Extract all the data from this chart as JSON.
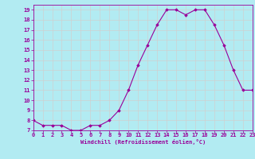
{
  "x": [
    0,
    1,
    2,
    3,
    4,
    5,
    6,
    7,
    8,
    9,
    10,
    11,
    12,
    13,
    14,
    15,
    16,
    17,
    18,
    19,
    20,
    21,
    22,
    23
  ],
  "y": [
    8.0,
    7.5,
    7.5,
    7.5,
    7.0,
    7.0,
    7.5,
    7.5,
    8.0,
    9.0,
    11.0,
    13.5,
    15.5,
    17.5,
    19.0,
    19.0,
    18.5,
    19.0,
    19.0,
    17.5,
    15.5,
    13.0,
    11.0,
    11.0
  ],
  "line_color": "#990099",
  "marker": "D",
  "marker_size": 1.8,
  "bg_color": "#b2ebf2",
  "grid_color": "#d0d0d0",
  "xlabel": "Windchill (Refroidissement éolien,°C)",
  "xlabel_color": "#990099",
  "tick_color": "#990099",
  "ylim": [
    7,
    19.5
  ],
  "xlim": [
    0,
    23
  ],
  "yticks": [
    7,
    8,
    9,
    10,
    11,
    12,
    13,
    14,
    15,
    16,
    17,
    18,
    19
  ],
  "xticks": [
    0,
    1,
    2,
    3,
    4,
    5,
    6,
    7,
    8,
    9,
    10,
    11,
    12,
    13,
    14,
    15,
    16,
    17,
    18,
    19,
    20,
    21,
    22,
    23
  ],
  "xtick_labels": [
    "0",
    "1",
    "2",
    "3",
    "4",
    "5",
    "6",
    "7",
    "8",
    "9",
    "10",
    "11",
    "12",
    "13",
    "14",
    "15",
    "16",
    "17",
    "18",
    "19",
    "20",
    "21",
    "22",
    "23"
  ],
  "ytick_labels": [
    "7",
    "8",
    "9",
    "10",
    "11",
    "12",
    "13",
    "14",
    "15",
    "16",
    "17",
    "18",
    "19"
  ],
  "linewidth": 0.8,
  "spine_color": "#990099",
  "label_fontsize": 5.0,
  "tick_fontsize": 5.0
}
